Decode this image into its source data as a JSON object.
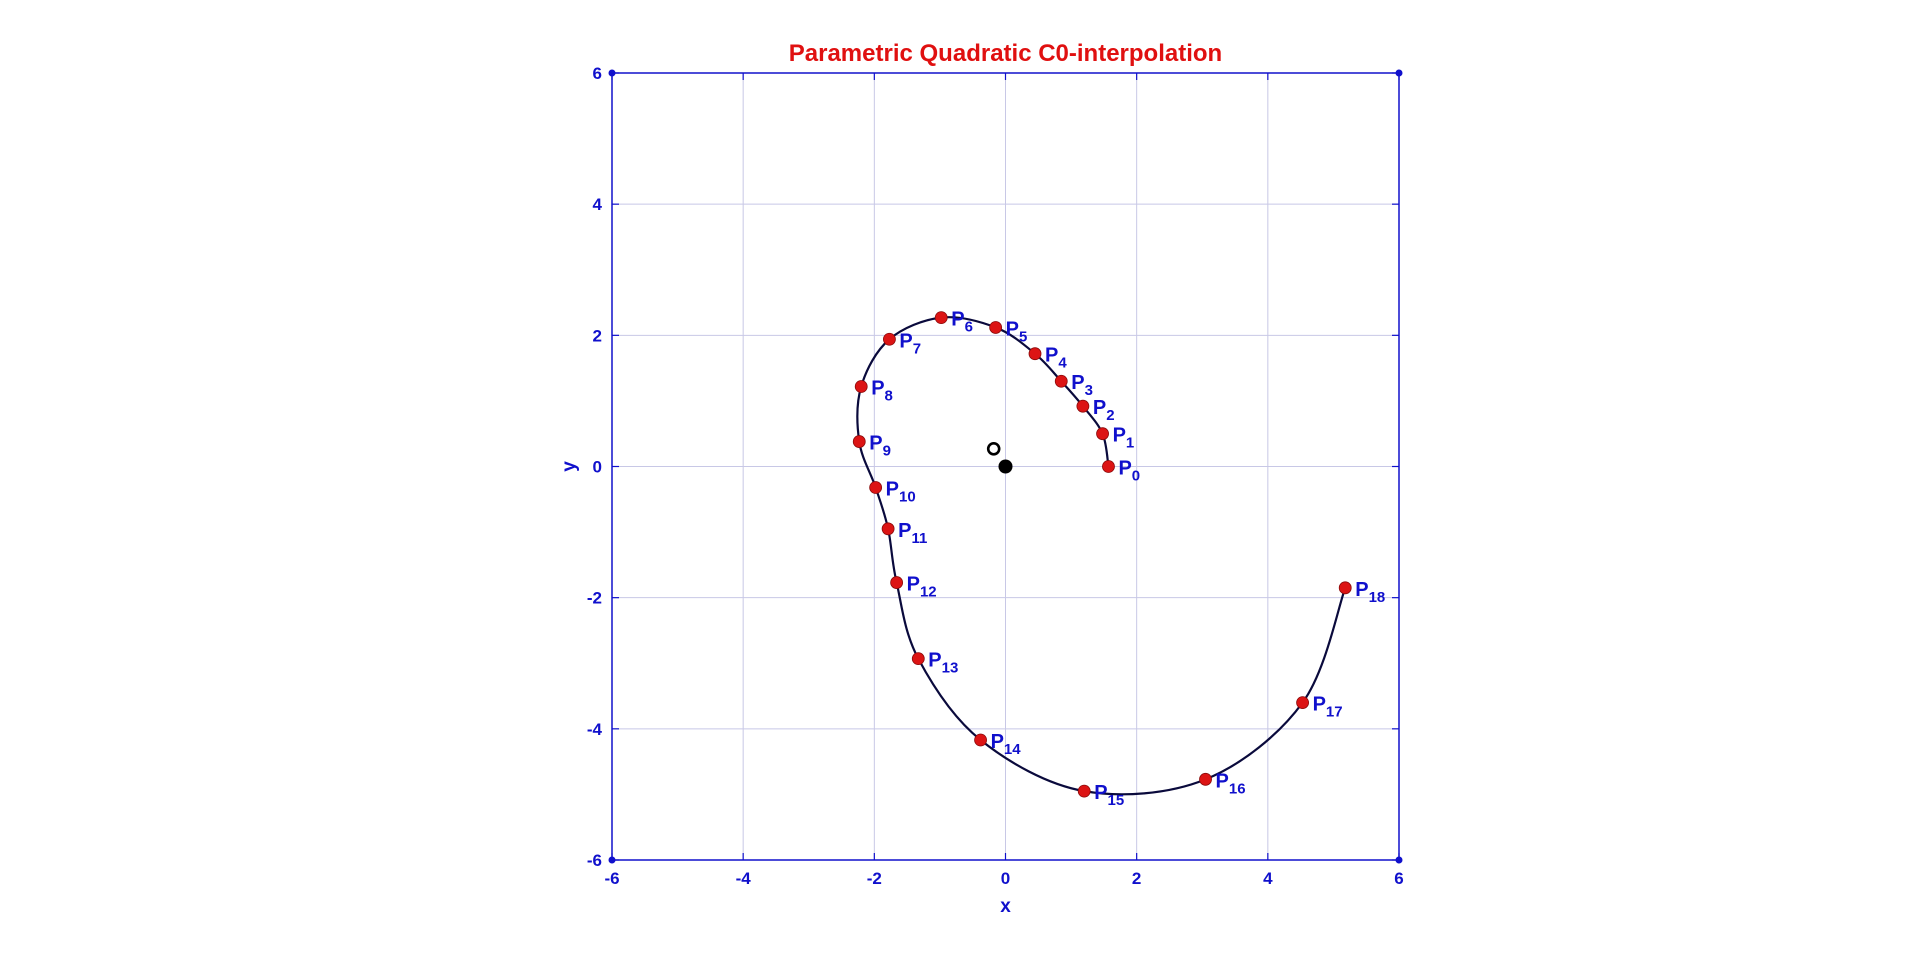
{
  "chart_data": {
    "type": "line",
    "title": "Parametric Quadratic C0-interpolation",
    "xlabel": "x",
    "ylabel": "y",
    "xlim": [
      -6,
      6
    ],
    "ylim": [
      -6,
      6
    ],
    "xticks": [
      -6,
      -4,
      -2,
      0,
      2,
      4,
      6
    ],
    "yticks": [
      -6,
      -4,
      -2,
      0,
      2,
      4,
      6
    ],
    "grid": true,
    "colors": {
      "title": "#e01010",
      "axes": "#1010cc",
      "grid": "#c8c8e6",
      "curve": "#0a0a3c",
      "points": "#dc1414",
      "labels": "#1010cc",
      "origin": "#000000"
    },
    "points": [
      {
        "label": "P",
        "sub": "0",
        "x": 1.57,
        "y": 0.0
      },
      {
        "label": "P",
        "sub": "1",
        "x": 1.48,
        "y": 0.5
      },
      {
        "label": "P",
        "sub": "2",
        "x": 1.18,
        "y": 0.92
      },
      {
        "label": "P",
        "sub": "3",
        "x": 0.85,
        "y": 1.3
      },
      {
        "label": "P",
        "sub": "4",
        "x": 0.45,
        "y": 1.72
      },
      {
        "label": "P",
        "sub": "5",
        "x": -0.15,
        "y": 2.12
      },
      {
        "label": "P",
        "sub": "6",
        "x": -0.98,
        "y": 2.27
      },
      {
        "label": "P",
        "sub": "7",
        "x": -1.77,
        "y": 1.94
      },
      {
        "label": "P",
        "sub": "8",
        "x": -2.2,
        "y": 1.22
      },
      {
        "label": "P",
        "sub": "9",
        "x": -2.23,
        "y": 0.38
      },
      {
        "label": "P",
        "sub": "10",
        "x": -1.98,
        "y": -0.32
      },
      {
        "label": "P",
        "sub": "11",
        "x": -1.79,
        "y": -0.95
      },
      {
        "label": "P",
        "sub": "12",
        "x": -1.66,
        "y": -1.77
      },
      {
        "label": "P",
        "sub": "13",
        "x": -1.33,
        "y": -2.93
      },
      {
        "label": "P",
        "sub": "14",
        "x": -0.38,
        "y": -4.17
      },
      {
        "label": "P",
        "sub": "15",
        "x": 1.2,
        "y": -4.95
      },
      {
        "label": "P",
        "sub": "16",
        "x": 3.05,
        "y": -4.77
      },
      {
        "label": "P",
        "sub": "17",
        "x": 4.53,
        "y": -3.6
      },
      {
        "label": "P",
        "sub": "18",
        "x": 5.18,
        "y": -1.85
      }
    ],
    "markers": [
      {
        "name": "origin-dot",
        "x": 0.0,
        "y": 0.0,
        "style": "filled"
      },
      {
        "name": "hollow-marker",
        "x": -0.18,
        "y": 0.27,
        "style": "hollow"
      }
    ]
  }
}
